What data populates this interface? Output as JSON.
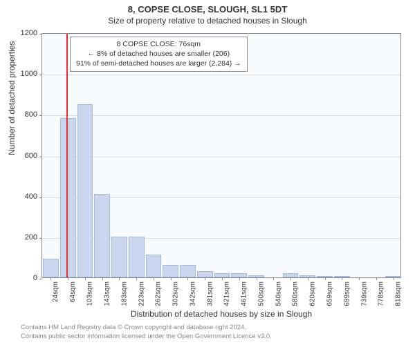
{
  "title_main": "8, COPSE CLOSE, SLOUGH, SL1 5DT",
  "title_sub": "Size of property relative to detached houses in Slough",
  "chart": {
    "type": "bar",
    "background_color": "#f8fafd",
    "bar_fill": "#c9d6ed",
    "bar_border": "#a5b9db",
    "grid_color": "#d8dde5",
    "axis_color": "#888",
    "marker_color": "#d93030",
    "marker_x_position": 35,
    "categories": [
      "24sqm",
      "64sqm",
      "103sqm",
      "143sqm",
      "183sqm",
      "223sqm",
      "262sqm",
      "302sqm",
      "342sqm",
      "381sqm",
      "421sqm",
      "461sqm",
      "500sqm",
      "540sqm",
      "580sqm",
      "620sqm",
      "659sqm",
      "699sqm",
      "739sqm",
      "778sqm",
      "818sqm"
    ],
    "values": [
      90,
      780,
      850,
      410,
      200,
      200,
      110,
      60,
      60,
      30,
      20,
      20,
      10,
      0,
      20,
      10,
      5,
      5,
      0,
      0,
      5
    ],
    "ylim": [
      0,
      1200
    ],
    "ytick_step": 200,
    "ylabel": "Number of detached properties",
    "xlabel": "Distribution of detached houses by size in Slough"
  },
  "info_box": {
    "line1": "8 COPSE CLOSE: 76sqm",
    "line2": "← 8% of detached houses are smaller (206)",
    "line3": "91% of semi-detached houses are larger (2,284) →"
  },
  "footer": {
    "line1": "Contains HM Land Registry data © Crown copyright and database right 2024.",
    "line2": "Contains public sector information licensed under the Open Government Licence v3.0."
  }
}
